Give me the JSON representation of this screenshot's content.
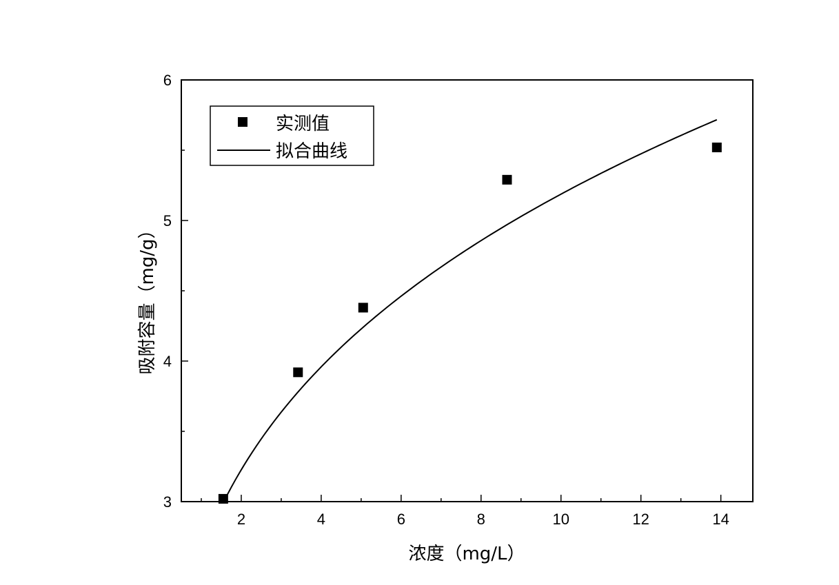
{
  "chart_data": {
    "type": "scatter",
    "xlabel": "浓度（mg/L）",
    "ylabel": "吸附容量（mg/g）",
    "xlim": [
      0.5,
      14.8
    ],
    "ylim": [
      3,
      6
    ],
    "x_major_ticks": [
      2,
      4,
      6,
      8,
      10,
      12,
      14
    ],
    "x_minor_ticks": [
      1,
      3,
      5,
      7,
      9,
      11,
      13
    ],
    "y_major_ticks": [
      3,
      4,
      5,
      6
    ],
    "y_minor_ticks": [
      3.5,
      4.5,
      5.5
    ],
    "grid": false,
    "legend_position": "top-left",
    "series": [
      {
        "name": "实测值",
        "kind": "points",
        "marker": "square",
        "color": "#000000",
        "x": [
          1.55,
          3.42,
          5.05,
          8.65,
          13.9
        ],
        "y": [
          3.02,
          3.92,
          4.38,
          5.29,
          5.52
        ]
      },
      {
        "name": "拟合曲线",
        "kind": "line",
        "color": "#000000",
        "x_range": [
          1.55,
          13.9
        ],
        "model": "freundlich",
        "K": 2.63,
        "n": 0.295
      }
    ]
  }
}
